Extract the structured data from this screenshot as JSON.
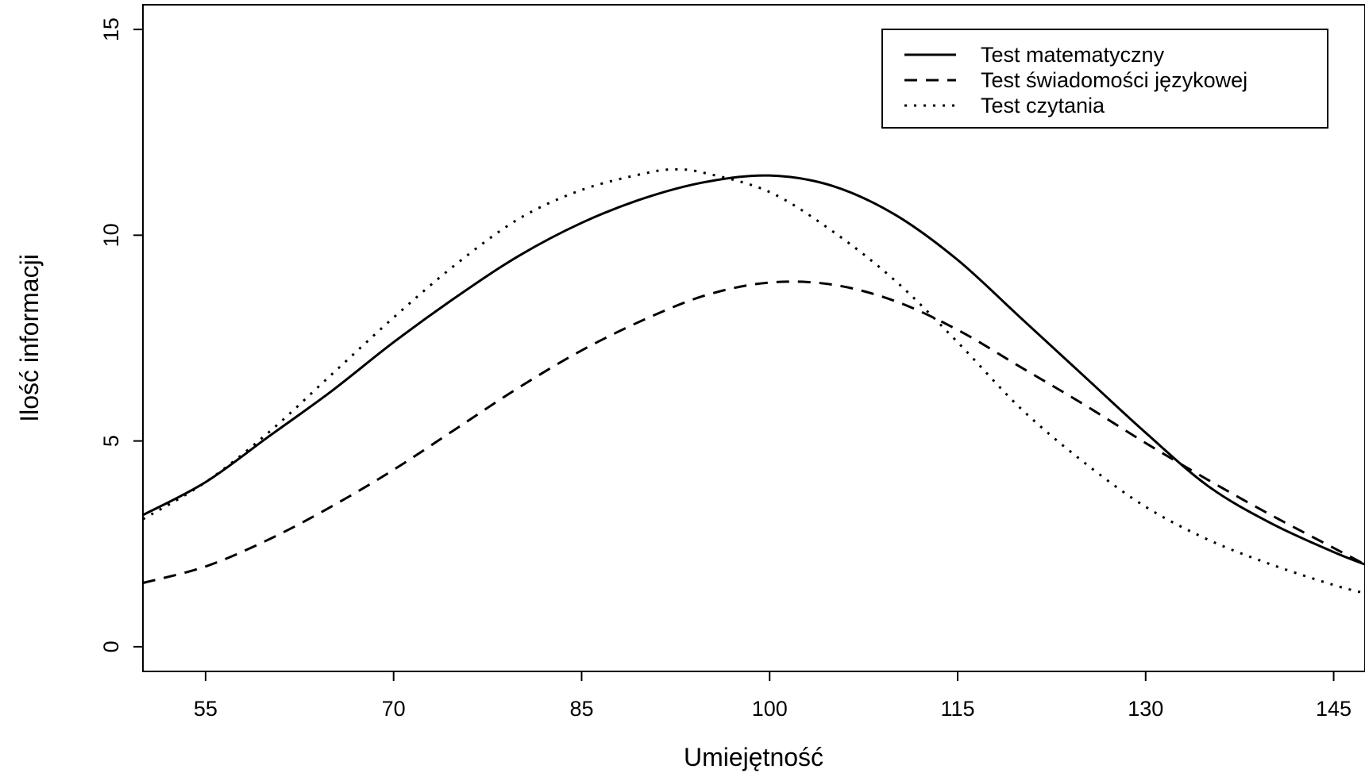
{
  "chart_data": {
    "type": "line",
    "title": "",
    "xlabel": "Umiejętność",
    "ylabel": "Ilość informacji",
    "xlim": [
      50,
      147.5
    ],
    "ylim": [
      -0.6,
      15.6
    ],
    "xticks": [
      55,
      70,
      85,
      100,
      115,
      130,
      145
    ],
    "yticks": [
      0,
      5,
      10,
      15
    ],
    "grid": false,
    "legend": {
      "position": "top-right"
    },
    "series": [
      {
        "name": "Test matematyczny",
        "style": "solid",
        "x": [
          50,
          55,
          60,
          65,
          70,
          75,
          80,
          85,
          90,
          95,
          100,
          105,
          110,
          115,
          120,
          125,
          130,
          135,
          140,
          145,
          147.5
        ],
        "y": [
          3.2,
          4.0,
          5.1,
          6.2,
          7.4,
          8.5,
          9.5,
          10.3,
          10.9,
          11.3,
          11.45,
          11.2,
          10.5,
          9.4,
          8.0,
          6.6,
          5.2,
          3.9,
          3.0,
          2.3,
          2.0
        ]
      },
      {
        "name": "Test świadomości językowej",
        "style": "dashed",
        "x": [
          50,
          55,
          60,
          65,
          70,
          75,
          80,
          85,
          90,
          95,
          100,
          105,
          110,
          115,
          120,
          125,
          130,
          135,
          140,
          145,
          147.5
        ],
        "y": [
          1.55,
          1.95,
          2.6,
          3.4,
          4.3,
          5.3,
          6.3,
          7.2,
          7.95,
          8.55,
          8.85,
          8.8,
          8.4,
          7.7,
          6.8,
          5.9,
          4.95,
          4.05,
          3.2,
          2.4,
          2.0
        ]
      },
      {
        "name": "Test czytania",
        "style": "dotted",
        "x": [
          50,
          55,
          60,
          65,
          70,
          75,
          80,
          85,
          90,
          92.5,
          95,
          100,
          105,
          110,
          115,
          120,
          125,
          130,
          135,
          140,
          145,
          147.5
        ],
        "y": [
          3.1,
          4.0,
          5.2,
          6.6,
          8.0,
          9.3,
          10.4,
          11.1,
          11.5,
          11.6,
          11.5,
          11.05,
          10.1,
          8.9,
          7.4,
          5.8,
          4.5,
          3.4,
          2.6,
          2.0,
          1.5,
          1.3
        ]
      }
    ]
  }
}
